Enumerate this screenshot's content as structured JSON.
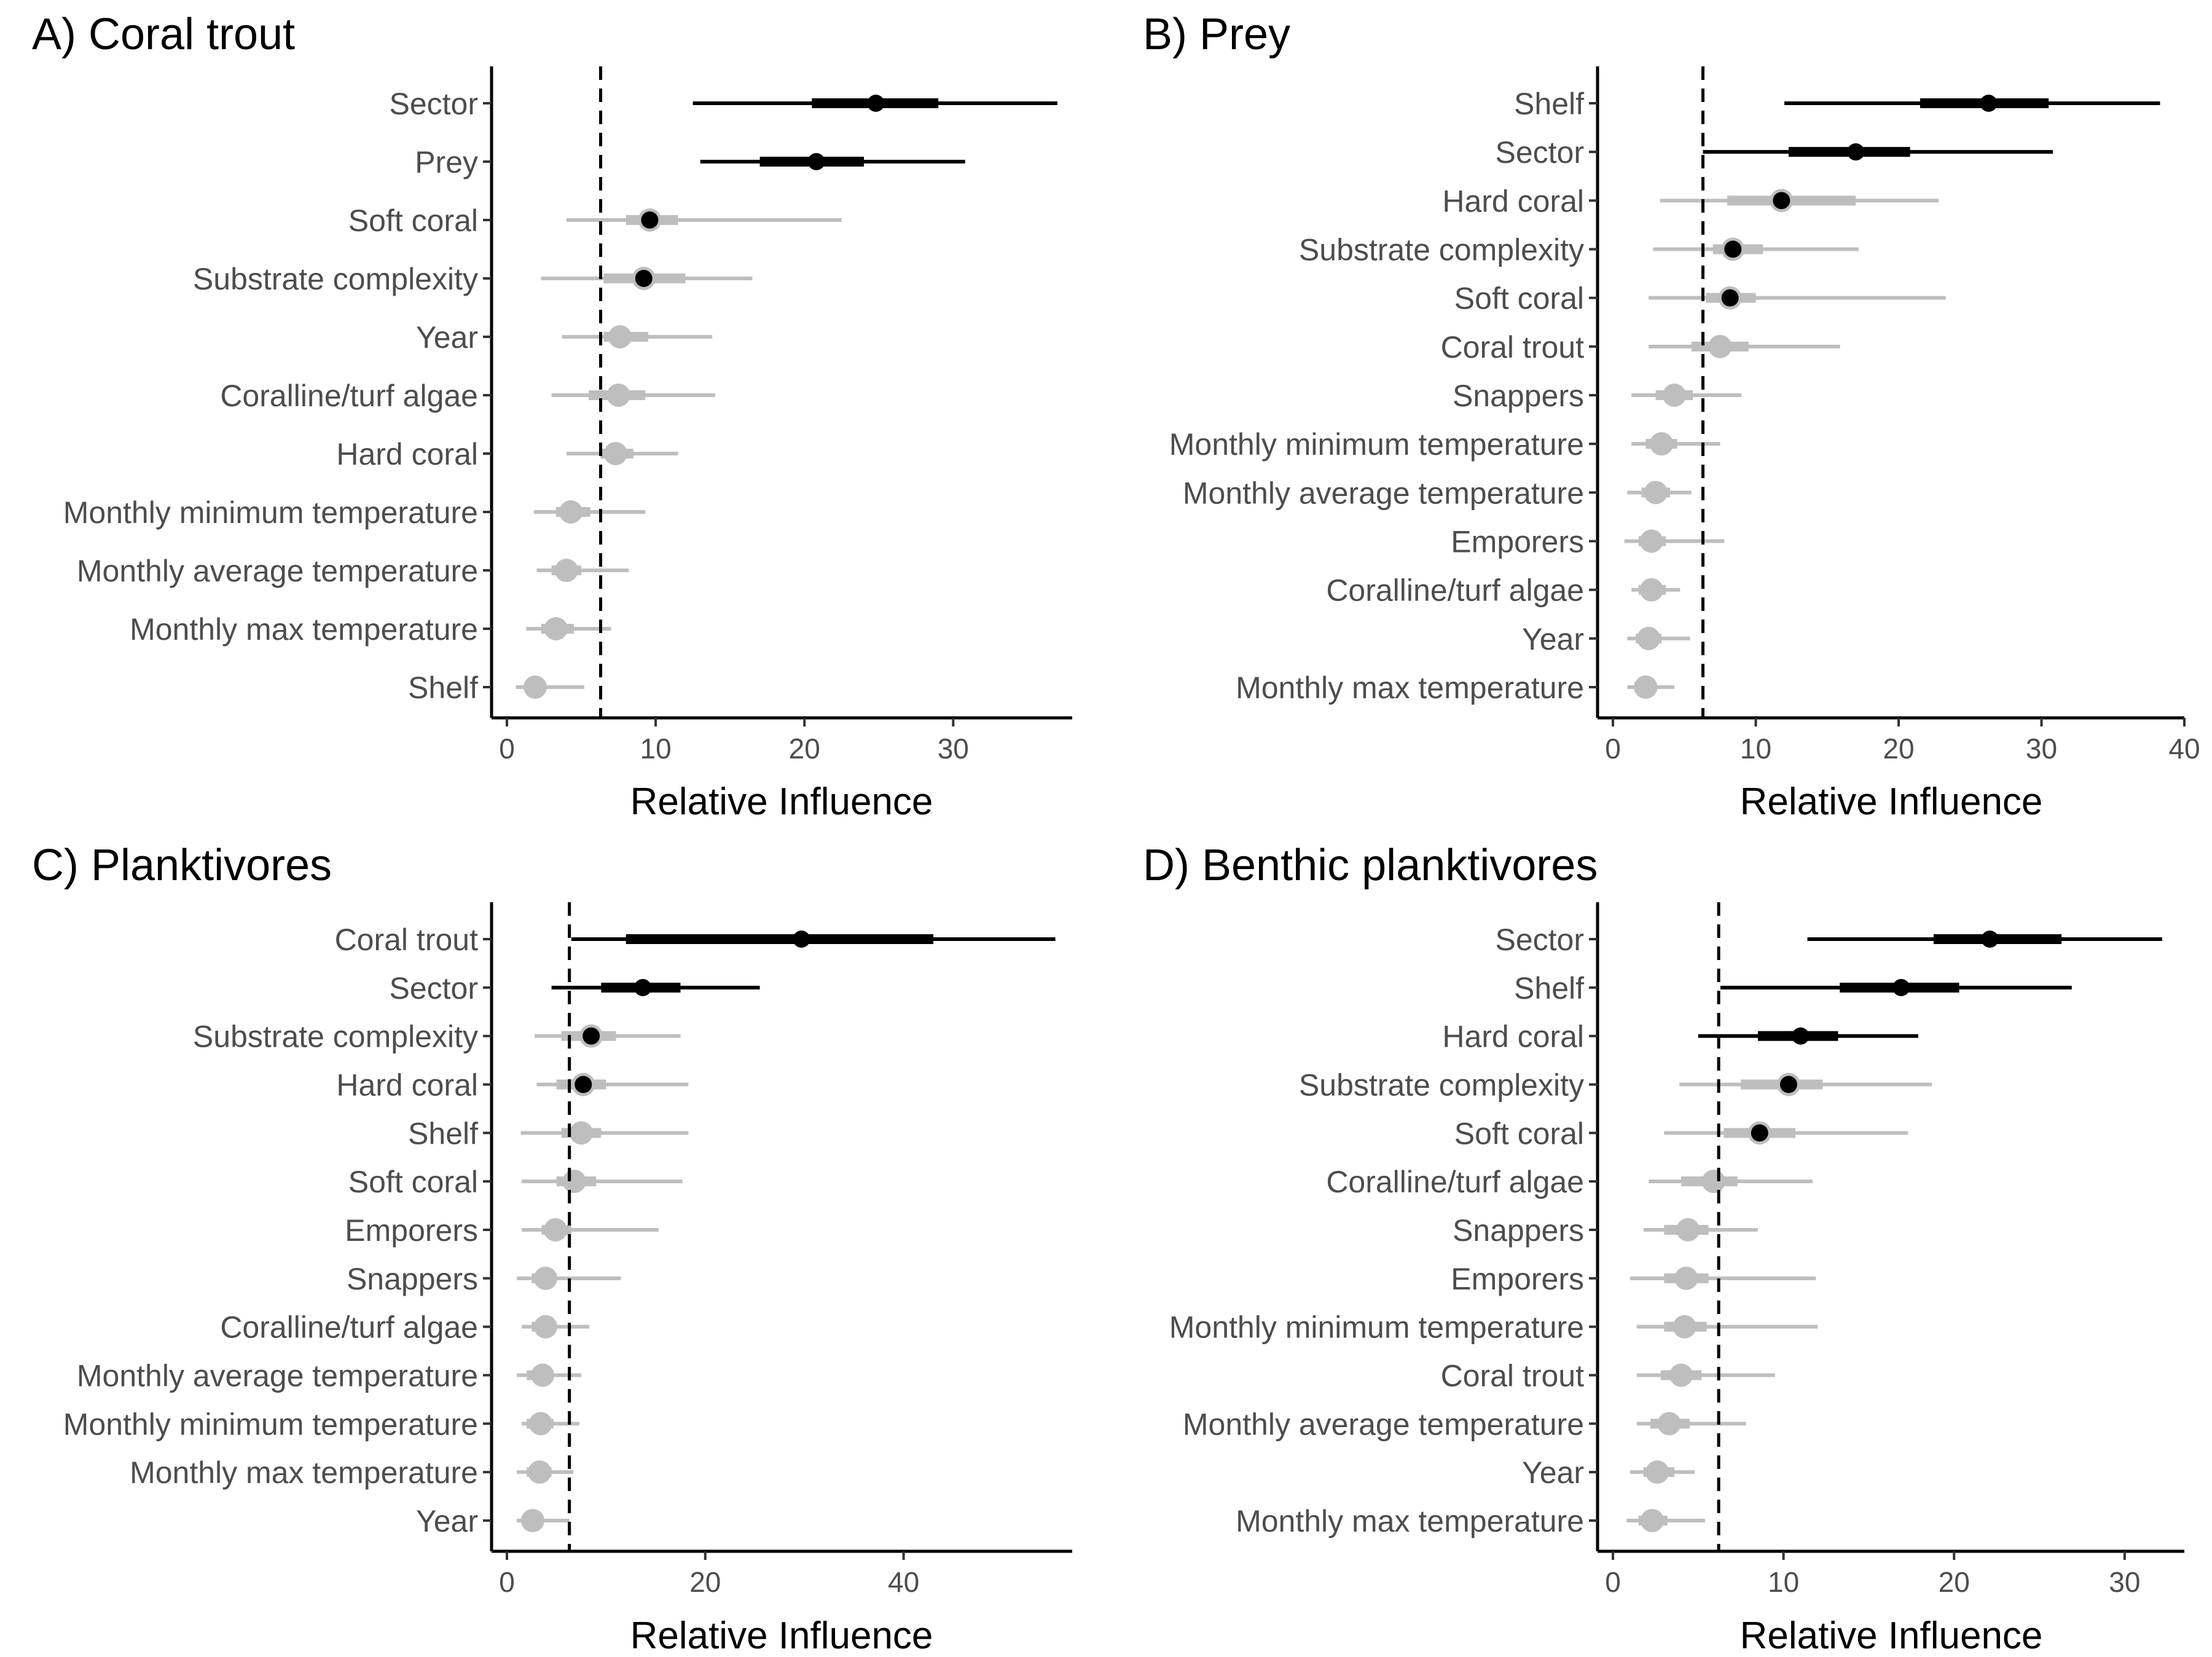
{
  "colors": {
    "significant": "#000000",
    "nonsignificant": "#bebebe",
    "text": "#4d4d4d"
  },
  "chart_data": [
    {
      "type": "scatter",
      "title": "A) Coral trout",
      "xlabel": "Relative Influence",
      "xlim": [
        0,
        38
      ],
      "xticks": [
        0,
        10,
        20,
        30
      ],
      "threshold": 6.3,
      "variables": [
        "Sector",
        "Prey",
        "Soft coral",
        "Substrate complexity",
        "Year",
        "Coralline/turf algae",
        "Hard coral",
        "Monthly minimum temperature",
        "Monthly average temperature",
        "Monthly max temperature",
        "Shelf"
      ],
      "median": [
        24.8,
        20.8,
        9.6,
        9.2,
        7.6,
        7.5,
        7.3,
        4.3,
        4.0,
        3.3,
        1.9
      ],
      "inner_low": [
        20.5,
        17.0,
        8.0,
        6.5,
        6.5,
        5.5,
        6.3,
        3.3,
        3.0,
        2.3,
        1.2
      ],
      "inner_high": [
        29.0,
        24.0,
        11.5,
        12.0,
        9.5,
        9.3,
        8.5,
        5.6,
        5.0,
        4.5,
        2.6
      ],
      "outer_low": [
        12.5,
        13.0,
        4.0,
        2.3,
        3.7,
        3.0,
        4.0,
        1.8,
        2.0,
        1.3,
        0.6
      ],
      "outer_high": [
        37.0,
        30.8,
        22.5,
        16.5,
        13.8,
        14.0,
        11.5,
        9.3,
        8.2,
        7.0,
        5.2
      ],
      "significant": [
        true,
        true,
        true,
        true,
        false,
        false,
        false,
        false,
        false,
        false,
        false
      ],
      "inner_significant": [
        true,
        true,
        false,
        false,
        false,
        false,
        false,
        false,
        false,
        false,
        false
      ]
    },
    {
      "type": "scatter",
      "title": "B) Prey",
      "xlabel": "Relative Influence",
      "xlim": [
        0,
        40
      ],
      "xticks": [
        0,
        10,
        20,
        30,
        40
      ],
      "threshold": 6.3,
      "variables": [
        "Shelf",
        "Sector",
        "Hard coral",
        "Substrate complexity",
        "Soft coral",
        "Coral trout",
        "Snappers",
        "Monthly minimum temperature",
        "Monthly average temperature",
        "Emporers",
        "Coralline/turf algae",
        "Year",
        "Monthly max temperature"
      ],
      "median": [
        26.3,
        17.0,
        11.8,
        8.4,
        8.2,
        7.5,
        4.3,
        3.4,
        3.0,
        2.7,
        2.7,
        2.5,
        2.3
      ],
      "inner_low": [
        21.5,
        12.3,
        8.0,
        7.0,
        6.5,
        5.5,
        3.0,
        2.3,
        2.0,
        1.8,
        1.8,
        1.6,
        1.5
      ],
      "inner_high": [
        30.5,
        20.8,
        17.0,
        10.5,
        10.0,
        9.5,
        5.6,
        4.5,
        4.0,
        3.7,
        3.7,
        3.4,
        3.0
      ],
      "outer_low": [
        12.0,
        6.3,
        3.3,
        2.8,
        2.5,
        2.5,
        1.3,
        1.3,
        1.0,
        0.8,
        1.3,
        1.0,
        1.0
      ],
      "outer_high": [
        38.3,
        30.8,
        22.8,
        17.2,
        23.3,
        15.9,
        9.0,
        7.5,
        5.5,
        7.8,
        4.7,
        5.4,
        4.3
      ],
      "significant": [
        true,
        true,
        true,
        true,
        true,
        false,
        false,
        false,
        false,
        false,
        false,
        false,
        false
      ],
      "inner_significant": [
        true,
        true,
        false,
        false,
        false,
        false,
        false,
        false,
        false,
        false,
        false,
        false,
        false
      ]
    },
    {
      "type": "scatter",
      "title": "C) Planktivores",
      "xlabel": "Relative Influence",
      "xlim": [
        0,
        57
      ],
      "xticks": [
        0,
        20,
        40
      ],
      "threshold": 6.3,
      "variables": [
        "Coral trout",
        "Sector",
        "Substrate complexity",
        "Hard coral",
        "Shelf",
        "Soft coral",
        "Emporers",
        "Snappers",
        "Coralline/turf algae",
        "Monthly average temperature",
        "Monthly minimum temperature",
        "Monthly max temperature",
        "Year"
      ],
      "median": [
        29.7,
        13.7,
        8.5,
        7.7,
        7.5,
        6.8,
        4.9,
        3.9,
        3.9,
        3.6,
        3.4,
        3.3,
        2.6
      ],
      "inner_low": [
        12.0,
        9.5,
        5.5,
        5.0,
        5.5,
        5.0,
        3.5,
        2.5,
        2.5,
        2.0,
        2.0,
        2.0,
        1.5
      ],
      "inner_high": [
        43.0,
        17.5,
        11.0,
        10.0,
        9.5,
        9.0,
        6.5,
        5.0,
        5.0,
        4.7,
        4.7,
        4.5,
        3.6
      ],
      "outer_low": [
        6.5,
        4.5,
        2.8,
        3.0,
        1.4,
        1.5,
        1.5,
        1.0,
        1.5,
        1.0,
        1.5,
        1.0,
        1.0
      ],
      "outer_high": [
        55.3,
        25.5,
        17.5,
        18.3,
        18.3,
        17.7,
        15.3,
        11.5,
        8.3,
        7.5,
        7.3,
        6.7,
        6.3
      ],
      "significant": [
        true,
        true,
        true,
        true,
        false,
        false,
        false,
        false,
        false,
        false,
        false,
        false,
        false
      ],
      "inner_significant": [
        true,
        true,
        false,
        false,
        false,
        false,
        false,
        false,
        false,
        false,
        false,
        false,
        false
      ]
    },
    {
      "type": "scatter",
      "title": "D) Benthic planktivores",
      "xlabel": "Relative Influence",
      "xlim": [
        0,
        33.5
      ],
      "xticks": [
        0,
        10,
        20,
        30
      ],
      "threshold": 6.2,
      "variables": [
        "Sector",
        "Shelf",
        "Hard coral",
        "Substrate complexity",
        "Soft coral",
        "Coralline/turf algae",
        "Snappers",
        "Emporers",
        "Monthly minimum temperature",
        "Coral trout",
        "Monthly average temperature",
        "Year",
        "Monthly max temperature"
      ],
      "median": [
        22.1,
        16.9,
        11.0,
        10.3,
        8.6,
        5.9,
        4.4,
        4.3,
        4.2,
        4.0,
        3.3,
        2.6,
        2.3
      ],
      "inner_low": [
        18.8,
        13.3,
        8.5,
        7.5,
        6.5,
        4.0,
        3.0,
        3.0,
        3.0,
        2.8,
        2.2,
        1.8,
        1.5
      ],
      "inner_high": [
        26.3,
        20.3,
        13.2,
        12.3,
        10.7,
        7.3,
        5.6,
        5.6,
        5.5,
        5.2,
        4.5,
        3.6,
        3.2
      ],
      "outer_low": [
        11.4,
        6.3,
        5.0,
        3.9,
        3.0,
        2.1,
        1.8,
        1.0,
        1.4,
        1.4,
        1.4,
        1.0,
        0.8
      ],
      "outer_high": [
        32.2,
        26.9,
        17.9,
        18.7,
        17.3,
        11.7,
        8.5,
        11.9,
        12.0,
        9.5,
        7.8,
        4.8,
        5.4
      ],
      "significant": [
        true,
        true,
        true,
        true,
        true,
        false,
        false,
        false,
        false,
        false,
        false,
        false,
        false
      ],
      "inner_significant": [
        true,
        true,
        true,
        false,
        false,
        false,
        false,
        false,
        false,
        false,
        false,
        false,
        false
      ]
    }
  ]
}
